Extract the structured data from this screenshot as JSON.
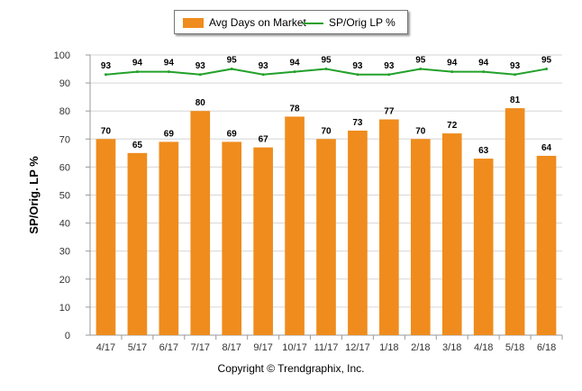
{
  "chart_data": {
    "type": "bar",
    "categories": [
      "4/17",
      "5/17",
      "6/17",
      "7/17",
      "8/17",
      "9/17",
      "10/17",
      "11/17",
      "12/17",
      "1/18",
      "2/18",
      "3/18",
      "4/18",
      "5/18",
      "6/18"
    ],
    "series": [
      {
        "name": "Avg Days on Market",
        "type": "bar",
        "color": "#ef8c1d",
        "values": [
          70,
          65,
          69,
          80,
          69,
          67,
          78,
          70,
          73,
          77,
          70,
          72,
          63,
          81,
          64
        ]
      },
      {
        "name": "SP/Orig LP %",
        "type": "line",
        "color": "#22a12a",
        "values": [
          93,
          94,
          94,
          93,
          95,
          93,
          94,
          95,
          93,
          93,
          95,
          94,
          94,
          93,
          95
        ]
      }
    ],
    "ylabel": "SP/Orig. LP %",
    "xlabel": "",
    "ylim": [
      0,
      100
    ],
    "yticks": [
      0,
      10,
      20,
      30,
      40,
      50,
      60,
      70,
      80,
      90,
      100
    ],
    "grid": true,
    "legend_position": "top-center"
  },
  "footer": {
    "copyright": "Copyright © Trendgraphix, Inc."
  }
}
